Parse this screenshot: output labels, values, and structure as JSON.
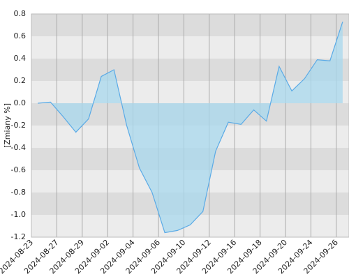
{
  "chart_data": {
    "type": "area",
    "y_label": "[Zmiany %]",
    "categories": [
      "2024-08-23",
      null,
      "2024-08-27",
      null,
      "2024-08-29",
      null,
      "2024-09-02",
      null,
      "2024-09-04",
      null,
      "2024-09-06",
      null,
      "2024-09-10",
      null,
      "2024-09-12",
      null,
      "2024-09-16",
      null,
      "2024-09-18",
      null,
      "2024-09-20",
      null,
      "2024-09-24",
      null,
      "2024-09-26"
    ],
    "values": [
      0.0,
      0.01,
      -0.12,
      -0.26,
      -0.14,
      0.24,
      0.3,
      -0.2,
      -0.58,
      -0.8,
      -1.16,
      -1.14,
      -1.09,
      -0.97,
      -0.43,
      -0.17,
      -0.19,
      -0.06,
      -0.16,
      0.33,
      0.11,
      0.22,
      0.39,
      0.38,
      0.73
    ],
    "color": "#5aaae6",
    "fill_color": "#a8d8ee",
    "ylim": [
      -1.2,
      0.8
    ],
    "yticks": [
      {
        "value": -1.2,
        "label": "-1.2"
      },
      {
        "value": -1,
        "label": "-1.0"
      },
      -0.8,
      -0.6,
      -0.4,
      -0.2,
      {
        "value": 0,
        "label": "0.0"
      },
      0.2,
      0.4,
      0.6,
      0.8
    ],
    "grid": true
  }
}
